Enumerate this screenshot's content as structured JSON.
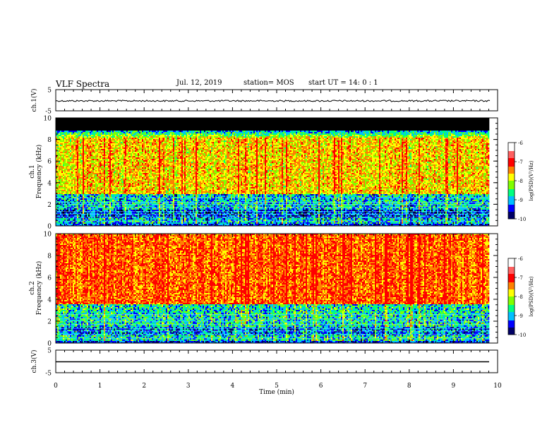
{
  "header": {
    "title": "VLF Spectra",
    "date": "Jul. 12, 2019",
    "station": "station= MOS",
    "start_ut": "start UT =  14: 0  : 1"
  },
  "chart_data": [
    {
      "type": "line",
      "ylabel": "ch.1(V)",
      "xlim": [
        0,
        10
      ],
      "ylim": [
        -5,
        5
      ],
      "yticks": [
        "5",
        "-5"
      ],
      "note": "waveform ~ -0.3 V with small noise"
    },
    {
      "type": "heatmap",
      "ylabel": "ch.1\nFrequency (kHz)",
      "ylabel_lines": [
        "ch.1",
        "Frequency  (kHz)"
      ],
      "xlim": [
        0,
        10
      ],
      "ylim": [
        0,
        10
      ],
      "yticks": [
        "0",
        "2",
        "4",
        "6",
        "8",
        "10"
      ],
      "data_end_min": 9.83,
      "colorbar": {
        "label": "log(PSD)(V²/Hz)",
        "range": [
          -10,
          -6
        ],
        "ticks": [
          "-6",
          "-7",
          "-8",
          "-9",
          "-10"
        ]
      },
      "profile_note": "high PSD 3-8 kHz, lower below 3 kHz, cutoff above ~8.7 kHz"
    },
    {
      "type": "heatmap",
      "ylabel_lines": [
        "ch.2",
        "Frequency  (kHz)"
      ],
      "xlim": [
        0,
        10
      ],
      "ylim": [
        0,
        10
      ],
      "yticks": [
        "0",
        "2",
        "4",
        "6",
        "8",
        "10"
      ],
      "data_end_min": 9.83,
      "colorbar": {
        "label": "log(PSD)(V²/Hz)",
        "range": [
          -10,
          -6
        ],
        "ticks": [
          "-6",
          "-7",
          "-8",
          "-9",
          "-10"
        ]
      },
      "profile_note": "saturated (white/red) above ~3.5 kHz"
    },
    {
      "type": "line",
      "ylabel": "ch.3(V)",
      "xlim": [
        0,
        10
      ],
      "ylim": [
        -5,
        5
      ],
      "yticks": [
        "5",
        "-5"
      ],
      "xlabel": "Time  (min)",
      "xticks": [
        "0",
        "1",
        "2",
        "3",
        "4",
        "5",
        "6",
        "7",
        "8",
        "9",
        "10"
      ],
      "note": "constant ~ -1.5 V"
    }
  ],
  "colors": {
    "colormap": [
      "#000066",
      "#0000ff",
      "#00bfff",
      "#00ff80",
      "#80ff00",
      "#ffff00",
      "#ff8000",
      "#ff0000",
      "#ffffff"
    ]
  }
}
